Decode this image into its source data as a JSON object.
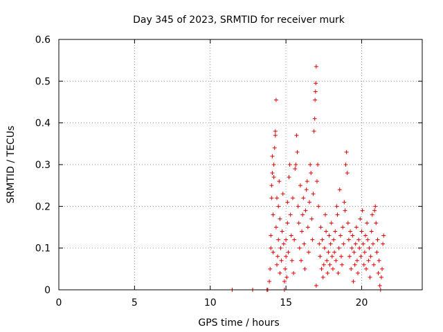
{
  "chart_data": {
    "type": "scatter",
    "title": "Day 345 of 2023, SRMTID for receiver murk",
    "xlabel": "GPS time / hours",
    "ylabel": "SRMTID / TECUs",
    "xlim": [
      0,
      24
    ],
    "ylim": [
      0,
      0.6
    ],
    "xticks": [
      0,
      5,
      10,
      15,
      20
    ],
    "yticks": [
      0,
      0.1,
      0.2,
      0.3,
      0.4,
      0.5,
      0.6
    ],
    "grid": true,
    "marker": "plus",
    "color": "#e00000",
    "series": [
      {
        "values_note": "",
        "points": [
          [
            11.45,
            0.0
          ],
          [
            12.8,
            0.0
          ],
          [
            13.75,
            0.0
          ],
          [
            13.8,
            0.0
          ],
          [
            13.9,
            0.02
          ],
          [
            13.95,
            0.05
          ],
          [
            14.0,
            0.1
          ],
          [
            14.0,
            0.13
          ],
          [
            14.05,
            0.22
          ],
          [
            14.05,
            0.25
          ],
          [
            14.1,
            0.28
          ],
          [
            14.1,
            0.32
          ],
          [
            14.15,
            0.18
          ],
          [
            14.15,
            0.09
          ],
          [
            14.2,
            0.3
          ],
          [
            14.2,
            0.27
          ],
          [
            14.25,
            0.34
          ],
          [
            14.3,
            0.38
          ],
          [
            14.3,
            0.37
          ],
          [
            14.35,
            0.455
          ],
          [
            14.35,
            0.15
          ],
          [
            14.4,
            0.22
          ],
          [
            14.4,
            0.06
          ],
          [
            14.45,
            0.08
          ],
          [
            14.5,
            0.12
          ],
          [
            14.5,
            0.2
          ],
          [
            14.55,
            0.26
          ],
          [
            14.6,
            0.17
          ],
          [
            14.6,
            0.04
          ],
          [
            14.65,
            0.1
          ],
          [
            14.7,
            0.07
          ],
          [
            14.75,
            0.14
          ],
          [
            14.8,
            0.23
          ],
          [
            14.85,
            0.11
          ],
          [
            14.9,
            0.02
          ],
          [
            14.9,
            0.0
          ],
          [
            14.95,
            0.05
          ],
          [
            15.0,
            0.08
          ],
          [
            15.0,
            0.12
          ],
          [
            15.05,
            0.03
          ],
          [
            15.1,
            0.21
          ],
          [
            15.1,
            0.16
          ],
          [
            15.15,
            0.09
          ],
          [
            15.2,
            0.27
          ],
          [
            15.25,
            0.3
          ],
          [
            15.3,
            0.18
          ],
          [
            15.35,
            0.13
          ],
          [
            15.4,
            0.07
          ],
          [
            15.45,
            0.22
          ],
          [
            15.5,
            0.04
          ],
          [
            15.55,
            0.12
          ],
          [
            15.6,
            0.29
          ],
          [
            15.65,
            0.3
          ],
          [
            15.7,
            0.37
          ],
          [
            15.75,
            0.33
          ],
          [
            15.8,
            0.2
          ],
          [
            15.85,
            0.16
          ],
          [
            15.9,
            0.1
          ],
          [
            15.95,
            0.25
          ],
          [
            16.0,
            0.07
          ],
          [
            16.05,
            0.14
          ],
          [
            16.1,
            0.18
          ],
          [
            16.15,
            0.22
          ],
          [
            16.2,
            0.11
          ],
          [
            16.25,
            0.05
          ],
          [
            16.3,
            0.19
          ],
          [
            16.35,
            0.24
          ],
          [
            16.4,
            0.26
          ],
          [
            16.45,
            0.15
          ],
          [
            16.5,
            0.09
          ],
          [
            16.55,
            0.21
          ],
          [
            16.6,
            0.3
          ],
          [
            16.65,
            0.28
          ],
          [
            16.7,
            0.17
          ],
          [
            16.75,
            0.12
          ],
          [
            16.8,
            0.23
          ],
          [
            16.85,
            0.38
          ],
          [
            16.9,
            0.41
          ],
          [
            16.92,
            0.455
          ],
          [
            16.95,
            0.475
          ],
          [
            16.97,
            0.495
          ],
          [
            17.0,
            0.535
          ],
          [
            17.0,
            0.01
          ],
          [
            17.05,
            0.26
          ],
          [
            17.1,
            0.3
          ],
          [
            17.15,
            0.2
          ],
          [
            17.2,
            0.11
          ],
          [
            17.25,
            0.08
          ],
          [
            17.3,
            0.15
          ],
          [
            17.35,
            0.05
          ],
          [
            17.4,
            0.12
          ],
          [
            17.45,
            0.03
          ],
          [
            17.5,
            0.06
          ],
          [
            17.55,
            0.1
          ],
          [
            17.6,
            0.18
          ],
          [
            17.65,
            0.14
          ],
          [
            17.7,
            0.07
          ],
          [
            17.75,
            0.04
          ],
          [
            17.8,
            0.09
          ],
          [
            17.85,
            0.13
          ],
          [
            17.9,
            0.06
          ],
          [
            17.95,
            0.11
          ],
          [
            18.0,
            0.16
          ],
          [
            18.05,
            0.08
          ],
          [
            18.1,
            0.05
          ],
          [
            18.15,
            0.12
          ],
          [
            18.2,
            0.09
          ],
          [
            18.25,
            0.14
          ],
          [
            18.3,
            0.07
          ],
          [
            18.35,
            0.2
          ],
          [
            18.4,
            0.18
          ],
          [
            18.45,
            0.04
          ],
          [
            18.5,
            0.1
          ],
          [
            18.55,
            0.24
          ],
          [
            18.6,
            0.13
          ],
          [
            18.65,
            0.08
          ],
          [
            18.7,
            0.06
          ],
          [
            18.75,
            0.15
          ],
          [
            18.8,
            0.11
          ],
          [
            18.85,
            0.21
          ],
          [
            18.9,
            0.19
          ],
          [
            18.95,
            0.3
          ],
          [
            19.0,
            0.33
          ],
          [
            19.05,
            0.28
          ],
          [
            19.1,
            0.16
          ],
          [
            19.15,
            0.12
          ],
          [
            19.2,
            0.08
          ],
          [
            19.25,
            0.14
          ],
          [
            19.3,
            0.05
          ],
          [
            19.35,
            0.1
          ],
          [
            19.4,
            0.13
          ],
          [
            19.45,
            0.02
          ],
          [
            19.5,
            0.09
          ],
          [
            19.55,
            0.06
          ],
          [
            19.6,
            0.11
          ],
          [
            19.65,
            0.15
          ],
          [
            19.7,
            0.07
          ],
          [
            19.75,
            0.04
          ],
          [
            19.8,
            0.12
          ],
          [
            19.85,
            0.1
          ],
          [
            19.9,
            0.17
          ],
          [
            19.95,
            0.08
          ],
          [
            20.0,
            0.14
          ],
          [
            20.05,
            0.19
          ],
          [
            20.1,
            0.11
          ],
          [
            20.15,
            0.06
          ],
          [
            20.2,
            0.09
          ],
          [
            20.25,
            0.13
          ],
          [
            20.3,
            0.05
          ],
          [
            20.35,
            0.16
          ],
          [
            20.4,
            0.12
          ],
          [
            20.45,
            0.07
          ],
          [
            20.5,
            0.1
          ],
          [
            20.55,
            0.03
          ],
          [
            20.6,
            0.08
          ],
          [
            20.65,
            0.14
          ],
          [
            20.7,
            0.18
          ],
          [
            20.75,
            0.11
          ],
          [
            20.8,
            0.06
          ],
          [
            20.85,
            0.19
          ],
          [
            20.9,
            0.2
          ],
          [
            20.95,
            0.16
          ],
          [
            21.0,
            0.09
          ],
          [
            21.05,
            0.12
          ],
          [
            21.1,
            0.04
          ],
          [
            21.15,
            0.07
          ],
          [
            21.2,
            0.01
          ],
          [
            21.25,
            0.0
          ],
          [
            21.3,
            0.03
          ],
          [
            21.35,
            0.05
          ],
          [
            21.4,
            0.11
          ],
          [
            21.45,
            0.13
          ]
        ]
      }
    ]
  }
}
